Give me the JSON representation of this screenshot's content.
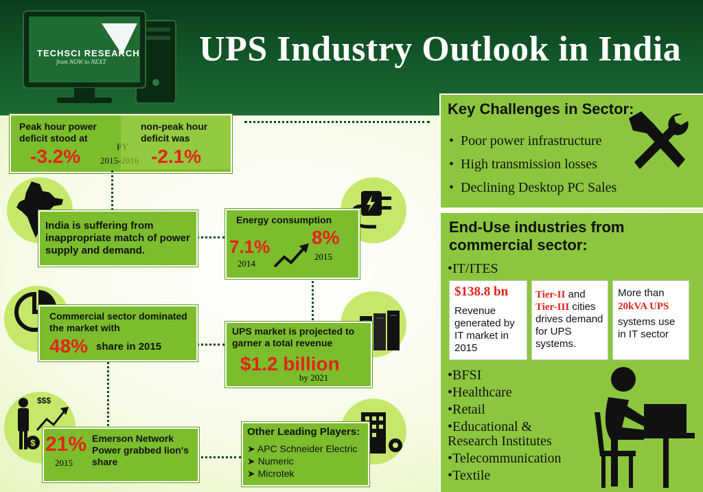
{
  "brand": {
    "name": "TechSci Research",
    "tagline": "from NOW to NEXT"
  },
  "title": "UPS Industry Outlook in India",
  "deficit": {
    "peak_label": "Peak hour power deficit stood at",
    "peak_value": "-3.2%",
    "fy_label": "FY",
    "fy_years": "2015-2016",
    "nonpeak_label": "non-peak hour deficit was",
    "nonpeak_value": "-2.1%"
  },
  "india_mismatch": "India is suffering from inappropriate match of power supply and demand.",
  "energy": {
    "label": "Energy consumption",
    "value_2014": "7.1%",
    "year_2014": "2014",
    "value_2015": "8%",
    "year_2015": "2015"
  },
  "commercial": {
    "label": "Commercial sector dominated the market with",
    "value": "48%",
    "suffix": "share in 2015"
  },
  "ups_market": {
    "label": "UPS market is projected to garner a total revenue",
    "value": "$1.2 billion",
    "year": "by 2021"
  },
  "emerson": {
    "value": "21%",
    "year": "2015",
    "label": "Emerson Network Power grabbed lion's share",
    "money_symbol": "$$$"
  },
  "players": {
    "title": "Other Leading Players:",
    "items": [
      "APC Schneider Electric",
      "Numeric",
      "Microtek"
    ]
  },
  "challenges": {
    "title": "Key Challenges in Sector:",
    "items": [
      "Poor power infrastructure",
      "High transmission losses",
      "Declining Desktop PC Sales"
    ]
  },
  "end_use": {
    "title": "End-Use industries from commercial sector:",
    "it_label": "IT/ITES",
    "cards": [
      {
        "highlight": "$138.8 bn",
        "text": "Revenue generated by IT market in 2015"
      },
      {
        "highlight1": "Tier-II",
        "mid": " and ",
        "highlight2": "Tier-III",
        "text": " cities drives demand for UPS systems."
      },
      {
        "pre": "More than",
        "highlight": "20kVA UPS",
        "text": "systems use in IT sector"
      }
    ],
    "items": [
      "BFSI",
      "Healthcare",
      "Retail",
      "Educational & Research Institutes",
      "Telecommunication",
      "Textile"
    ]
  },
  "colors": {
    "dark_green": "#0d4a22",
    "box_green": "#7cbd2d",
    "accent_red": "#e2231a",
    "panel_green": "#8cc63f"
  }
}
